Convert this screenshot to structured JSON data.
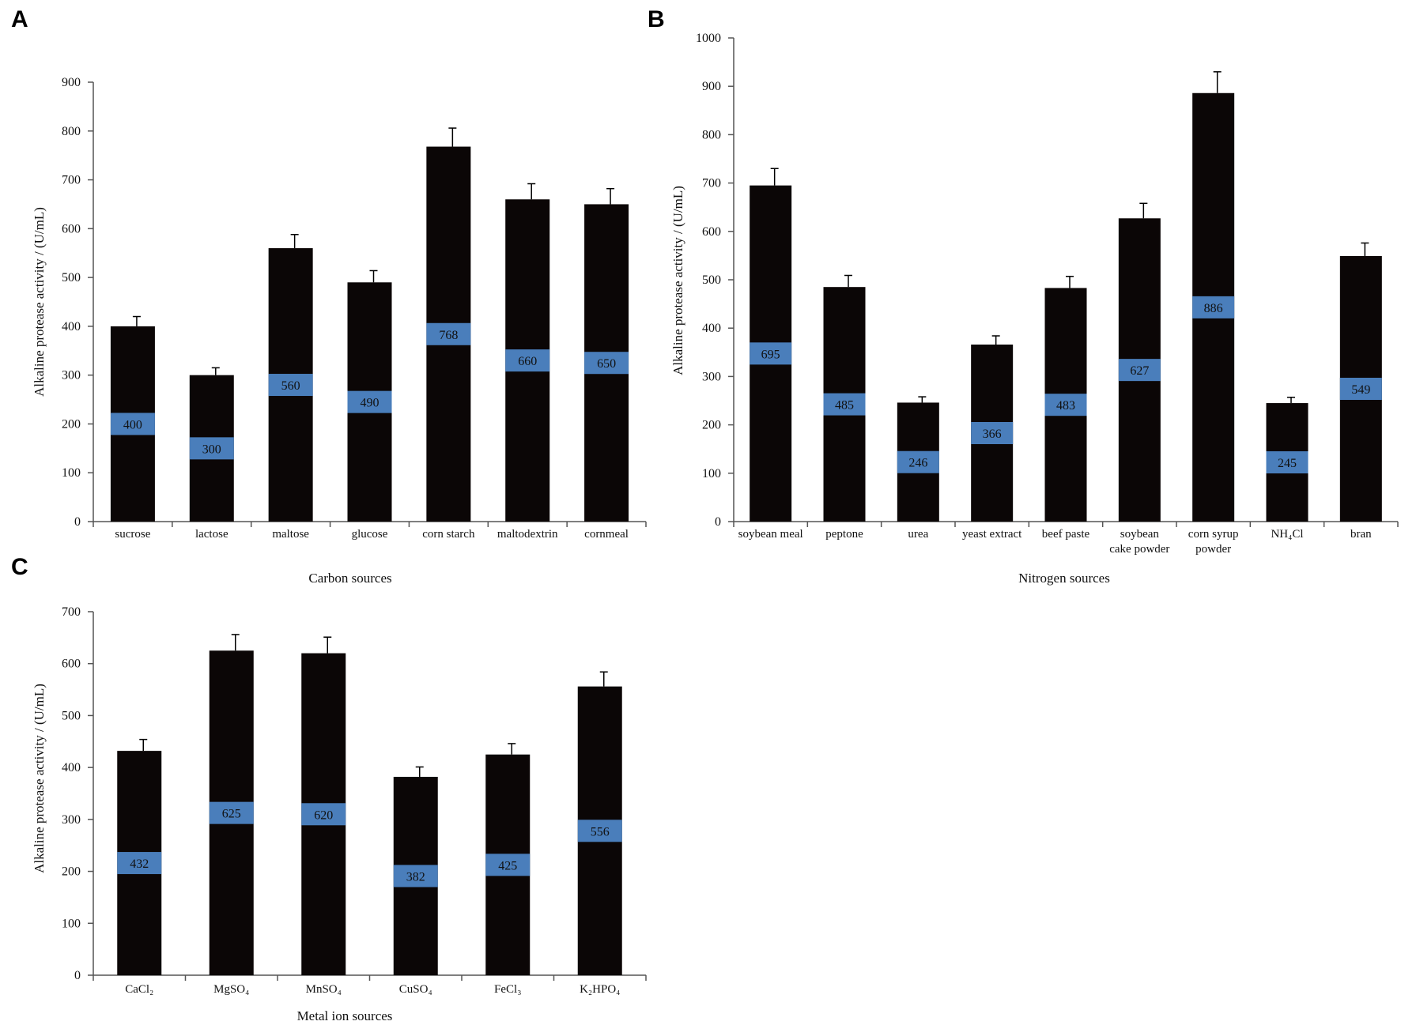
{
  "chart_data": [
    {
      "panel": "A",
      "type": "bar",
      "categories": [
        "sucrose",
        "lactose",
        "maltose",
        "glucose",
        "corn starch",
        "maltodextrin",
        "cornmeal"
      ],
      "values": [
        400,
        300,
        560,
        490,
        768,
        660,
        650
      ],
      "errors": [
        20,
        15,
        28,
        24,
        38,
        32,
        32
      ],
      "value_labels": [
        "400",
        "300",
        "560",
        "490",
        "768",
        "660",
        "650"
      ],
      "xlabel": "Carbon sources",
      "ylabel": "Alkaline protease activity / (U/mL)",
      "ylim": [
        0,
        900
      ],
      "ytick_step": 100,
      "yticks": [
        "0",
        "100",
        "200",
        "300",
        "400",
        "500",
        "600",
        "700",
        "800",
        "900"
      ],
      "grid": false,
      "bar_color": "#0b0606",
      "label_box_color": "#4a7ebb"
    },
    {
      "panel": "B",
      "type": "bar",
      "categories": [
        "soybean meal",
        "peptone",
        "urea",
        "yeast extract",
        "beef paste",
        "soybean\ncake powder",
        "corn syrup\npowder",
        "NH₄Cl",
        "bran"
      ],
      "values": [
        695,
        485,
        246,
        366,
        483,
        627,
        886,
        245,
        549
      ],
      "errors": [
        35,
        24,
        12,
        18,
        24,
        31,
        44,
        12,
        27
      ],
      "value_labels": [
        "695",
        "485",
        "246",
        "366",
        "483",
        "627",
        "886",
        "245",
        "549"
      ],
      "xlabel": "Nitrogen sources",
      "ylabel": "Alkaline protease activity / (U/mL)",
      "ylim": [
        0,
        1000
      ],
      "ytick_step": 100,
      "yticks": [
        "0",
        "100",
        "200",
        "300",
        "400",
        "500",
        "600",
        "700",
        "800",
        "900",
        "1000"
      ],
      "grid": false,
      "bar_color": "#0b0606",
      "label_box_color": "#4a7ebb"
    },
    {
      "panel": "C",
      "type": "bar",
      "categories": [
        "CaCl₂",
        "MgSO₄",
        "MnSO₄",
        "CuSO₄",
        "FeCl₃",
        "K₂HPO₄"
      ],
      "values": [
        432,
        625,
        620,
        382,
        425,
        556
      ],
      "errors": [
        22,
        31,
        31,
        19,
        21,
        28
      ],
      "value_labels": [
        "432",
        "625",
        "620",
        "382",
        "425",
        "556"
      ],
      "xlabel": "Metal ion sources",
      "ylabel": "Alkaline protease activity / (U/mL)",
      "ylim": [
        0,
        700
      ],
      "ytick_step": 100,
      "yticks": [
        "0",
        "100",
        "200",
        "300",
        "400",
        "500",
        "600",
        "700"
      ],
      "grid": false,
      "bar_color": "#0b0606",
      "label_box_color": "#4a7ebb"
    }
  ]
}
